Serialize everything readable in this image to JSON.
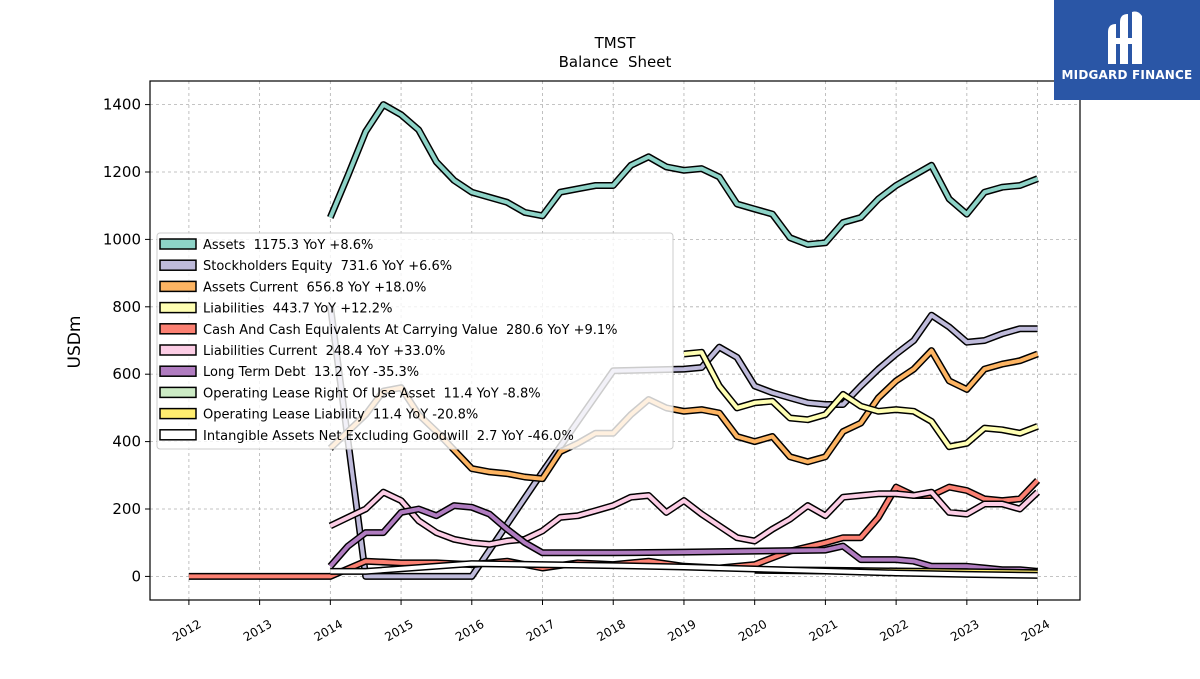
{
  "chart_data": {
    "type": "line",
    "title": "TMST",
    "subtitle": "Balance  Sheet",
    "xlabel": "",
    "ylabel": "USDm",
    "xlim": [
      2011.45,
      2024.6
    ],
    "ylim": [
      -70,
      1470
    ],
    "yticks": [
      0,
      200,
      400,
      600,
      800,
      1000,
      1200,
      1400
    ],
    "xticks": [
      2012,
      2013,
      2014,
      2015,
      2016,
      2017,
      2018,
      2019,
      2020,
      2021,
      2022,
      2023,
      2024
    ],
    "grid": true,
    "legend_position": "center-left",
    "series": [
      {
        "name": "Assets",
        "label": "Assets  1175.3 YoY +8.6%",
        "color": "#8dd3c7",
        "x": [
          2014.0,
          2014.25,
          2014.5,
          2014.75,
          2015.0,
          2015.25,
          2015.5,
          2015.75,
          2016.0,
          2016.25,
          2016.5,
          2016.75,
          2017.0,
          2017.25,
          2017.5,
          2017.75,
          2018.0,
          2018.25,
          2018.5,
          2018.75,
          2019.0,
          2019.25,
          2019.5,
          2019.75,
          2020.0,
          2020.25,
          2020.5,
          2020.75,
          2021.0,
          2021.25,
          2021.5,
          2021.75,
          2022.0,
          2022.25,
          2022.5,
          2022.75,
          2023.0,
          2023.25,
          2023.5,
          2023.75,
          2024.0
        ],
        "y": [
          1065,
          1190,
          1320,
          1400,
          1370,
          1325,
          1230,
          1175,
          1140,
          1125,
          1110,
          1080,
          1070,
          1140,
          1150,
          1160,
          1160,
          1220,
          1245,
          1215,
          1205,
          1210,
          1185,
          1105,
          1090,
          1075,
          1005,
          985,
          990,
          1050,
          1065,
          1120,
          1160,
          1190,
          1220,
          1120,
          1075,
          1140,
          1155,
          1160,
          1180
        ]
      },
      {
        "name": "Stockholders Equity",
        "label": "Stockholders Equity  731.6 YoY +6.6%",
        "color": "#bebada",
        "x": [
          2014.0,
          2014.5,
          2016.0,
          2017.0,
          2018.0,
          2019.0,
          2019.25,
          2019.5,
          2019.75,
          2020.0,
          2020.25,
          2020.5,
          2020.75,
          2021.0,
          2021.25,
          2021.5,
          2021.75,
          2022.0,
          2022.25,
          2022.5,
          2022.75,
          2023.0,
          2023.25,
          2023.5,
          2023.75,
          2024.0
        ],
        "y": [
          805,
          0,
          0,
          310,
          610,
          615,
          620,
          680,
          650,
          565,
          545,
          530,
          515,
          510,
          510,
          565,
          615,
          660,
          700,
          775,
          740,
          695,
          700,
          720,
          735,
          735
        ]
      },
      {
        "name": "Assets Current",
        "label": "Assets Current  656.8 YoY +18.0%",
        "color": "#fdb462",
        "x": [
          2014.0,
          2014.25,
          2014.5,
          2014.75,
          2015.0,
          2015.25,
          2015.5,
          2015.75,
          2016.0,
          2016.25,
          2016.5,
          2016.75,
          2017.0,
          2017.25,
          2017.5,
          2017.75,
          2018.0,
          2018.25,
          2018.5,
          2018.75,
          2019.0,
          2019.25,
          2019.5,
          2019.75,
          2020.0,
          2020.25,
          2020.5,
          2020.75,
          2021.0,
          2021.25,
          2021.5,
          2021.75,
          2022.0,
          2022.25,
          2022.5,
          2022.75,
          2023.0,
          2023.25,
          2023.5,
          2023.75,
          2024.0
        ],
        "y": [
          380,
          430,
          480,
          550,
          560,
          480,
          430,
          375,
          320,
          310,
          305,
          295,
          290,
          370,
          395,
          425,
          425,
          480,
          525,
          500,
          490,
          495,
          485,
          415,
          400,
          415,
          355,
          340,
          355,
          430,
          455,
          530,
          580,
          615,
          670,
          580,
          555,
          615,
          630,
          640,
          660
        ]
      },
      {
        "name": "Liabilities",
        "label": "Liabilities  443.7 YoY +12.2%",
        "color": "#ffffb3",
        "x": [
          2019.0,
          2019.25,
          2019.5,
          2019.75,
          2020.0,
          2020.25,
          2020.5,
          2020.75,
          2021.0,
          2021.25,
          2021.5,
          2021.75,
          2022.0,
          2022.25,
          2022.5,
          2022.75,
          2023.0,
          2023.25,
          2023.5,
          2023.75,
          2024.0
        ],
        "y": [
          660,
          665,
          565,
          500,
          515,
          520,
          470,
          465,
          480,
          540,
          505,
          490,
          495,
          490,
          460,
          385,
          395,
          440,
          435,
          425,
          445
        ]
      },
      {
        "name": "Cash And Cash Equivalents At Carrying Value",
        "label": "Cash And Cash Equivalents At Carrying Value  280.6 YoY +9.1%",
        "color": "#fb8072",
        "x": [
          2012.0,
          2014.0,
          2014.5,
          2015.0,
          2015.5,
          2016.0,
          2016.5,
          2017.0,
          2017.5,
          2018.0,
          2018.5,
          2019.0,
          2019.5,
          2020.0,
          2020.5,
          2021.0,
          2021.25,
          2021.5,
          2021.75,
          2022.0,
          2022.25,
          2022.5,
          2022.75,
          2023.0,
          2023.25,
          2023.5,
          2023.75,
          2024.0
        ],
        "y": [
          0,
          0,
          45,
          40,
          40,
          35,
          45,
          25,
          40,
          35,
          45,
          30,
          25,
          35,
          75,
          100,
          115,
          115,
          175,
          265,
          240,
          240,
          265,
          255,
          230,
          225,
          230,
          285
        ]
      },
      {
        "name": "Liabilities Current",
        "label": "Liabilities Current  248.4 YoY +33.0%",
        "color": "#fccde5",
        "x": [
          2014.0,
          2014.25,
          2014.5,
          2014.75,
          2015.0,
          2015.25,
          2015.5,
          2015.75,
          2016.0,
          2016.25,
          2016.5,
          2016.75,
          2017.0,
          2017.25,
          2017.5,
          2017.75,
          2018.0,
          2018.25,
          2018.5,
          2018.75,
          2019.0,
          2019.25,
          2019.5,
          2019.75,
          2020.0,
          2020.25,
          2020.5,
          2020.75,
          2021.0,
          2021.25,
          2021.5,
          2021.75,
          2022.0,
          2022.25,
          2022.5,
          2022.75,
          2023.0,
          2023.25,
          2023.5,
          2023.75,
          2024.0
        ],
        "y": [
          150,
          175,
          200,
          250,
          225,
          165,
          130,
          110,
          100,
          95,
          105,
          110,
          135,
          175,
          180,
          195,
          210,
          235,
          240,
          190,
          225,
          185,
          150,
          115,
          105,
          140,
          170,
          210,
          180,
          235,
          240,
          245,
          245,
          240,
          250,
          190,
          185,
          215,
          215,
          200,
          250
        ]
      },
      {
        "name": "Long Term Debt",
        "label": "Long Term Debt  13.2 YoY -35.3%",
        "color": "#b07cc0",
        "x": [
          2014.0,
          2014.25,
          2014.5,
          2014.75,
          2015.0,
          2015.25,
          2015.5,
          2015.75,
          2016.0,
          2016.25,
          2016.5,
          2016.75,
          2017.0,
          2018.0,
          2019.0,
          2020.0,
          2021.0,
          2021.25,
          2021.5,
          2021.75,
          2022.0,
          2022.25,
          2022.5,
          2022.75,
          2023.0,
          2023.25,
          2023.5,
          2023.75,
          2024.0
        ],
        "y": [
          30,
          90,
          130,
          130,
          190,
          200,
          180,
          210,
          205,
          185,
          140,
          100,
          70,
          70,
          72,
          75,
          78,
          90,
          50,
          50,
          50,
          45,
          30,
          30,
          30,
          25,
          20,
          20,
          15
        ]
      },
      {
        "name": "Operating Lease Right Of Use Asset",
        "label": "Operating Lease Right Of Use Asset  11.4 YoY -8.8%",
        "color": "#ccebc5",
        "x": [
          2020.0,
          2021.0,
          2022.0,
          2023.0,
          2024.0
        ],
        "y": [
          18,
          16,
          14,
          13,
          11
        ]
      },
      {
        "name": "Operating Lease Liability",
        "label": "Operating Lease Liability  11.4 YoY -20.8%",
        "color": "#ffed6f",
        "x": [
          2020.0,
          2021.0,
          2022.0,
          2023.0,
          2024.0
        ],
        "y": [
          20,
          18,
          16,
          14,
          11
        ]
      },
      {
        "name": "Intangible Assets Net Excluding Goodwill",
        "label": "Intangible Assets Net Excluding Goodwill  2.7 YoY -46.0%",
        "color": "#ffffff",
        "x": [
          2014.0,
          2014.5,
          2016.0,
          2017.0,
          2018.0,
          2019.0,
          2020.0,
          2021.0,
          2022.0,
          2023.0,
          2024.0
        ],
        "y": [
          15,
          15,
          38,
          35,
          32,
          28,
          22,
          16,
          10,
          6,
          3
        ]
      }
    ]
  },
  "logo": {
    "text": "MIDGARD FINANCE",
    "color": "#2a56a6"
  }
}
